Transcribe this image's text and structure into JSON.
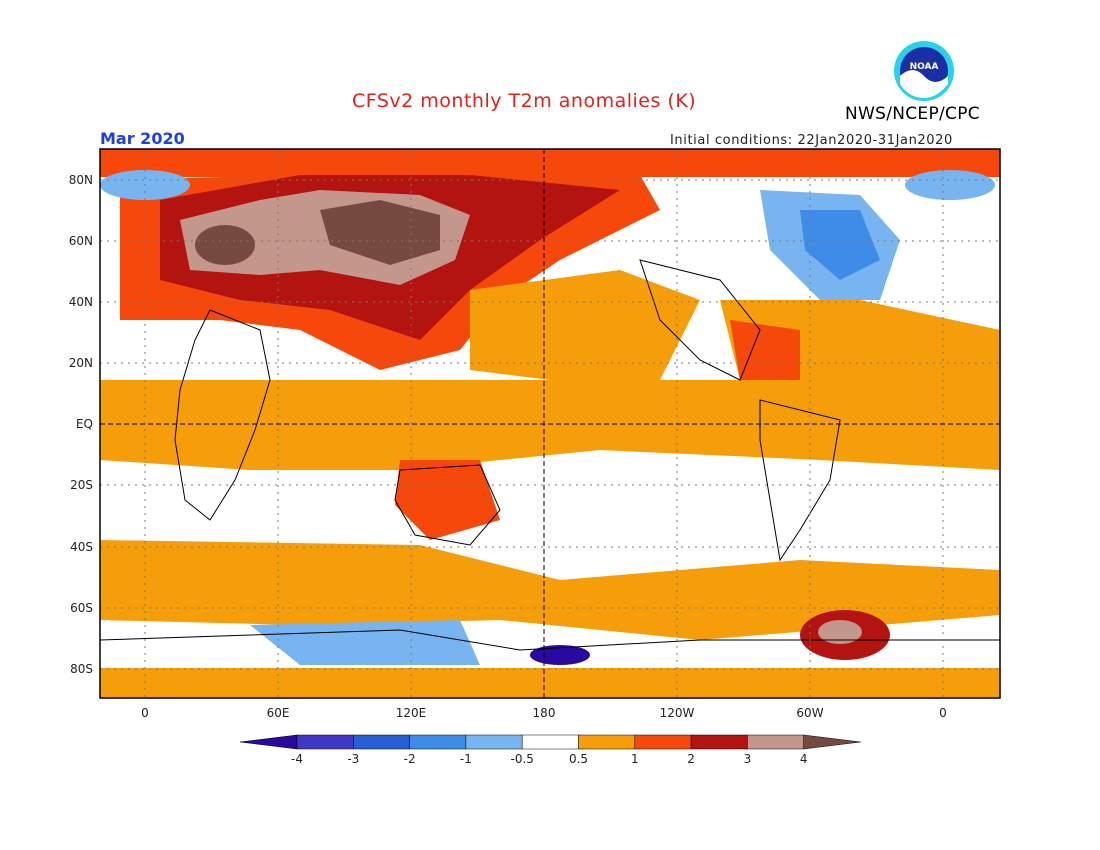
{
  "title": "CFSv2 monthly T2m anomalies (K)",
  "valid_month": "Mar 2020",
  "initial_conditions": "Initial conditions: 22Jan2020-31Jan2020",
  "agency": "NWS/NCEP/CPC",
  "logo_text": "NOAA",
  "lat_labels": [
    "80N",
    "60N",
    "40N",
    "20N",
    "EQ",
    "20S",
    "40S",
    "60S",
    "80S"
  ],
  "lon_labels": [
    "0",
    "60E",
    "120E",
    "180",
    "120W",
    "60W",
    "0"
  ],
  "colorbar": {
    "ticks": [
      "-4",
      "-3",
      "-2",
      "-1",
      "-0.5",
      "0.5",
      "1",
      "2",
      "3",
      "4"
    ],
    "colors": [
      "#2a0a9e",
      "#3d38c8",
      "#2860d4",
      "#3c8ce8",
      "#78b4f0",
      "#ffffff",
      "#f59e0a",
      "#f5480a",
      "#b4140f",
      "#c4978c",
      "#764a40"
    ]
  }
}
